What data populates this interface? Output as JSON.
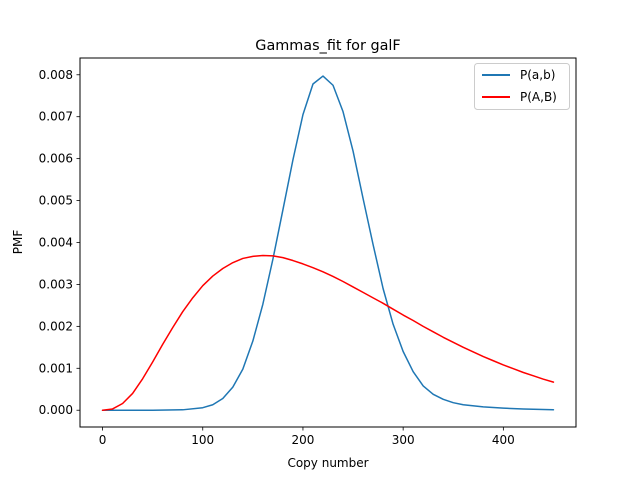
{
  "chart_data": {
    "type": "line",
    "title": "Gammas_fit for galF",
    "xlabel": "Copy number",
    "ylabel": "PMF",
    "xlim": [
      -22.5,
      472.5
    ],
    "ylim": [
      -0.0004,
      0.0084
    ],
    "xticks": [
      0,
      100,
      200,
      300,
      400
    ],
    "xtick_labels": [
      "0",
      "100",
      "200",
      "300",
      "400"
    ],
    "yticks": [
      0.0,
      0.001,
      0.002,
      0.003,
      0.004,
      0.005,
      0.006,
      0.007,
      0.008
    ],
    "ytick_labels": [
      "0.000",
      "0.001",
      "0.002",
      "0.003",
      "0.004",
      "0.005",
      "0.006",
      "0.007",
      "0.008"
    ],
    "grid": false,
    "legend_position": "top-right",
    "series": [
      {
        "name": "P(a,b)",
        "color": "#1f77b4",
        "x": [
          0,
          50,
          80,
          100,
          110,
          120,
          130,
          140,
          150,
          160,
          170,
          180,
          190,
          200,
          210,
          220,
          230,
          240,
          250,
          260,
          270,
          280,
          290,
          300,
          310,
          320,
          330,
          340,
          350,
          360,
          380,
          400,
          420,
          450
        ],
        "y": [
          0,
          0,
          1e-05,
          6e-05,
          0.00013,
          0.00028,
          0.00055,
          0.00098,
          0.00165,
          0.00253,
          0.0036,
          0.00478,
          0.00597,
          0.00705,
          0.00778,
          0.00797,
          0.00775,
          0.00712,
          0.00618,
          0.00505,
          0.00395,
          0.0029,
          0.00205,
          0.0014,
          0.00092,
          0.00058,
          0.00038,
          0.00026,
          0.00018,
          0.00013,
          8e-05,
          5e-05,
          3e-05,
          1e-05
        ]
      },
      {
        "name": "P(A,B)",
        "color": "#ff0000",
        "x": [
          0,
          10,
          20,
          30,
          40,
          50,
          60,
          70,
          80,
          90,
          100,
          110,
          120,
          130,
          140,
          150,
          160,
          170,
          180,
          190,
          200,
          210,
          220,
          230,
          240,
          250,
          260,
          270,
          280,
          290,
          300,
          310,
          320,
          330,
          340,
          350,
          360,
          370,
          380,
          390,
          400,
          410,
          420,
          430,
          440,
          450
        ],
        "y": [
          0,
          3e-05,
          0.00016,
          0.0004,
          0.00075,
          0.00115,
          0.00157,
          0.00197,
          0.00235,
          0.00268,
          0.00297,
          0.0032,
          0.00338,
          0.00352,
          0.00362,
          0.00367,
          0.00369,
          0.00368,
          0.00364,
          0.00357,
          0.00349,
          0.0034,
          0.0033,
          0.00319,
          0.00307,
          0.00294,
          0.00281,
          0.00268,
          0.00255,
          0.00241,
          0.00227,
          0.00214,
          0.002,
          0.00187,
          0.00174,
          0.00162,
          0.0015,
          0.00139,
          0.00128,
          0.00118,
          0.00108,
          0.00099,
          0.0009,
          0.00082,
          0.00074,
          0.00067
        ]
      }
    ]
  }
}
